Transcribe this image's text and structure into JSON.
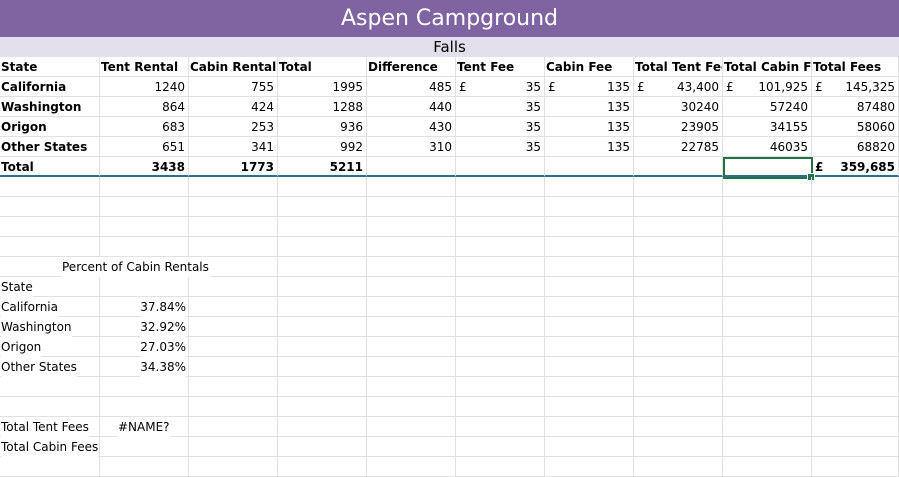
{
  "title": "Aspen Campground",
  "subtitle": "Falls",
  "headers": [
    "State",
    "Tent Rental",
    "Cabin Rental",
    "Total",
    "Difference",
    "Tent Fee",
    "Cabin Fee",
    "Total Tent Fee",
    "Total Cabin Fe",
    "Total Fees"
  ],
  "rows": [
    {
      "state": "California",
      "tent": "1240",
      "cabin": "755",
      "total": "1995",
      "diff": "485",
      "tent_fee_cur": "£",
      "tent_fee": "35",
      "cabin_fee_cur": "£",
      "cabin_fee": "135",
      "ttf_cur": "£",
      "ttf": "43,400",
      "tcf_cur": "£",
      "tcf": "101,925",
      "tf_cur": "£",
      "tf": "145,325"
    },
    {
      "state": "Washington",
      "tent": "864",
      "cabin": "424",
      "total": "1288",
      "diff": "440",
      "tent_fee_cur": "",
      "tent_fee": "35",
      "cabin_fee_cur": "",
      "cabin_fee": "135",
      "ttf_cur": "",
      "ttf": "30240",
      "tcf_cur": "",
      "tcf": "57240",
      "tf_cur": "",
      "tf": "87480"
    },
    {
      "state": "Origon",
      "tent": "683",
      "cabin": "253",
      "total": "936",
      "diff": "430",
      "tent_fee_cur": "",
      "tent_fee": "35",
      "cabin_fee_cur": "",
      "cabin_fee": "135",
      "ttf_cur": "",
      "ttf": "23905",
      "tcf_cur": "",
      "tcf": "34155",
      "tf_cur": "",
      "tf": "58060"
    },
    {
      "state": "Other States",
      "tent": "651",
      "cabin": "341",
      "total": "992",
      "diff": "310",
      "tent_fee_cur": "",
      "tent_fee": "35",
      "cabin_fee_cur": "",
      "cabin_fee": "135",
      "ttf_cur": "",
      "ttf": "22785",
      "tcf_cur": "",
      "tcf": "46035",
      "tf_cur": "",
      "tf": "68820"
    }
  ],
  "total_row": {
    "label": "Total",
    "tent": "3438",
    "cabin": "1773",
    "total": "5211",
    "tf_cur": "£",
    "tf": "359,685"
  },
  "percent_section": {
    "heading": "Percent of Cabin Rentals",
    "state_label": "State",
    "items": [
      {
        "state": "California",
        "pct": "37.84%"
      },
      {
        "state": "Washington",
        "pct": "32.92%"
      },
      {
        "state": "Origon",
        "pct": "27.03%"
      },
      {
        "state": "Other States",
        "pct": "34.38%"
      }
    ]
  },
  "summary": {
    "total_tent_fees_label": "Total Tent Fees",
    "total_tent_fees_value": "#NAME?",
    "total_cabin_fees_label": "Total Cabin Fees"
  }
}
